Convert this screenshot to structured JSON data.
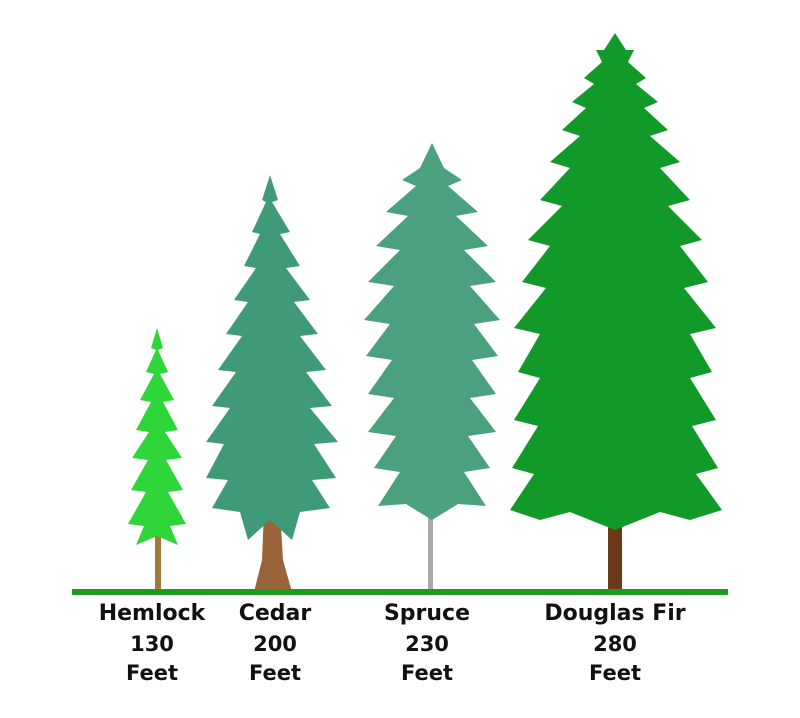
{
  "diagram": {
    "ground_color": "#1f9a1f",
    "trees": [
      {
        "name": "Hemlock",
        "height_value": "130",
        "height_unit": "Feet",
        "foliage_color": "#2ed63a",
        "trunk_color": "#a07a3c"
      },
      {
        "name": "Cedar",
        "height_value": "200",
        "height_unit": "Feet",
        "foliage_color": "#3f9a77",
        "trunk_color": "#9a643a"
      },
      {
        "name": "Spruce",
        "height_value": "230",
        "height_unit": "Feet",
        "foliage_color": "#4aa07f",
        "trunk_color": "#a9a9a9"
      },
      {
        "name": "Douglas Fir",
        "height_value": "280",
        "height_unit": "Feet",
        "foliage_color": "#119a2a",
        "trunk_color": "#6b3a16"
      }
    ]
  }
}
